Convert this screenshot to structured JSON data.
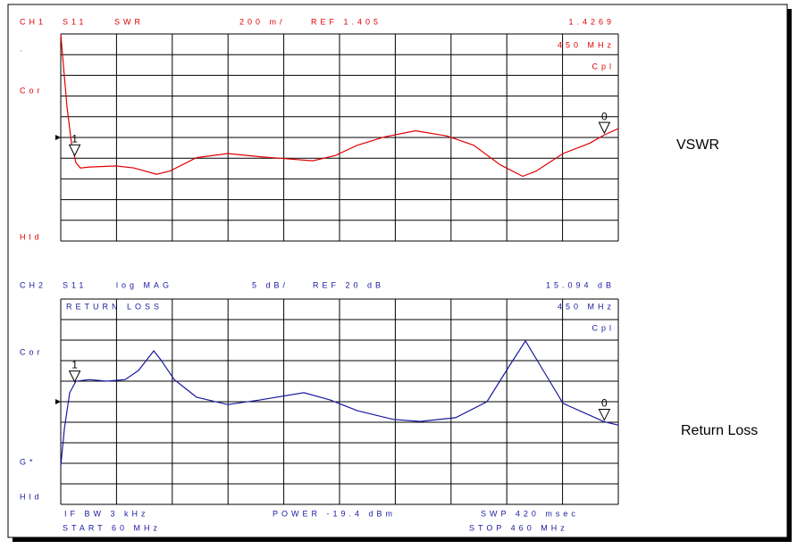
{
  "chart_data": [
    {
      "type": "line",
      "title": "VSWR",
      "labels": {
        "channel": "CH1",
        "parameter": "S11",
        "format": "SWR",
        "scale": "200 m/",
        "ref": "REF 1.405",
        "marker_value": "1.4269",
        "marker_freq": "450 MHz",
        "coupling": "Cpl",
        "status": [
          ".",
          "Cor",
          "Hld"
        ]
      },
      "x": [
        60,
        64.5,
        67.7,
        70.9,
        74.1,
        80.5,
        99.7,
        112.6,
        128.6,
        138.2,
        157.4,
        179.9,
        202.3,
        221.5,
        240.8,
        256.8,
        272.8,
        292.1,
        314.5,
        337,
        356.2,
        375.4,
        391.4,
        401,
        420.3,
        439.5,
        450,
        460
      ],
      "values": [
        2.4,
        1.7,
        1.35,
        1.16,
        1.11,
        1.12,
        1.13,
        1.11,
        1.05,
        1.08,
        1.21,
        1.25,
        1.22,
        1.2,
        1.18,
        1.23,
        1.33,
        1.41,
        1.47,
        1.42,
        1.33,
        1.14,
        1.03,
        1.08,
        1.25,
        1.35,
        1.43,
        1.49
      ],
      "color": "#e00000",
      "xlim": [
        60,
        460
      ],
      "ylim": [
        0.405,
        2.405
      ],
      "reference": 1.405,
      "grid": {
        "x_divisions": 10,
        "y_divisions": 10
      },
      "markers": [
        {
          "label": "1",
          "x": 70
        },
        {
          "label": "0",
          "x": 450
        }
      ]
    },
    {
      "type": "line",
      "title": "Return Loss",
      "labels": {
        "channel": "CH2",
        "parameter": "S11",
        "format": "log MAG",
        "scale": "5 dB/",
        "ref": "REF 20 dB",
        "marker_value": "15.094 dB",
        "trace_title": "RETURN LOSS",
        "marker_freq": "450 MHz",
        "coupling": "Cpl",
        "status": [
          "Cor",
          "G*",
          "Hld"
        ]
      },
      "footer": {
        "if_bw": "IF BW 3 kHz",
        "power": "POWER -19.4 dBm",
        "sweep": "SWP 420 msec",
        "start": "START 60 MHz",
        "stop": "STOP 460 MHz"
      },
      "x": [
        60,
        62.6,
        66.4,
        70.9,
        80.5,
        93.3,
        106.2,
        115.8,
        126.7,
        131.8,
        141.4,
        157.4,
        179.9,
        202.3,
        234.4,
        253.6,
        272.8,
        298.5,
        317.7,
        343.3,
        365.8,
        381.8,
        393.4,
        404.2,
        420.3,
        439.5,
        450,
        460
      ],
      "values": [
        4.3,
        13.5,
        22.2,
        25,
        25.4,
        25,
        25.4,
        27.6,
        32.4,
        30.2,
        25.4,
        21.1,
        19.3,
        20.4,
        22.2,
        20.4,
        17.8,
        15.7,
        15.2,
        16.1,
        20,
        28.7,
        34.8,
        28.7,
        19.6,
        16.7,
        15.1,
        14.3
      ],
      "color": "#1a1aa0",
      "xlim": [
        60,
        460
      ],
      "ylim": [
        -5,
        45
      ],
      "reference": 20,
      "grid": {
        "x_divisions": 10,
        "y_divisions": 10
      },
      "markers": [
        {
          "label": "1",
          "x": 70
        },
        {
          "label": "0",
          "x": 450
        }
      ]
    }
  ]
}
